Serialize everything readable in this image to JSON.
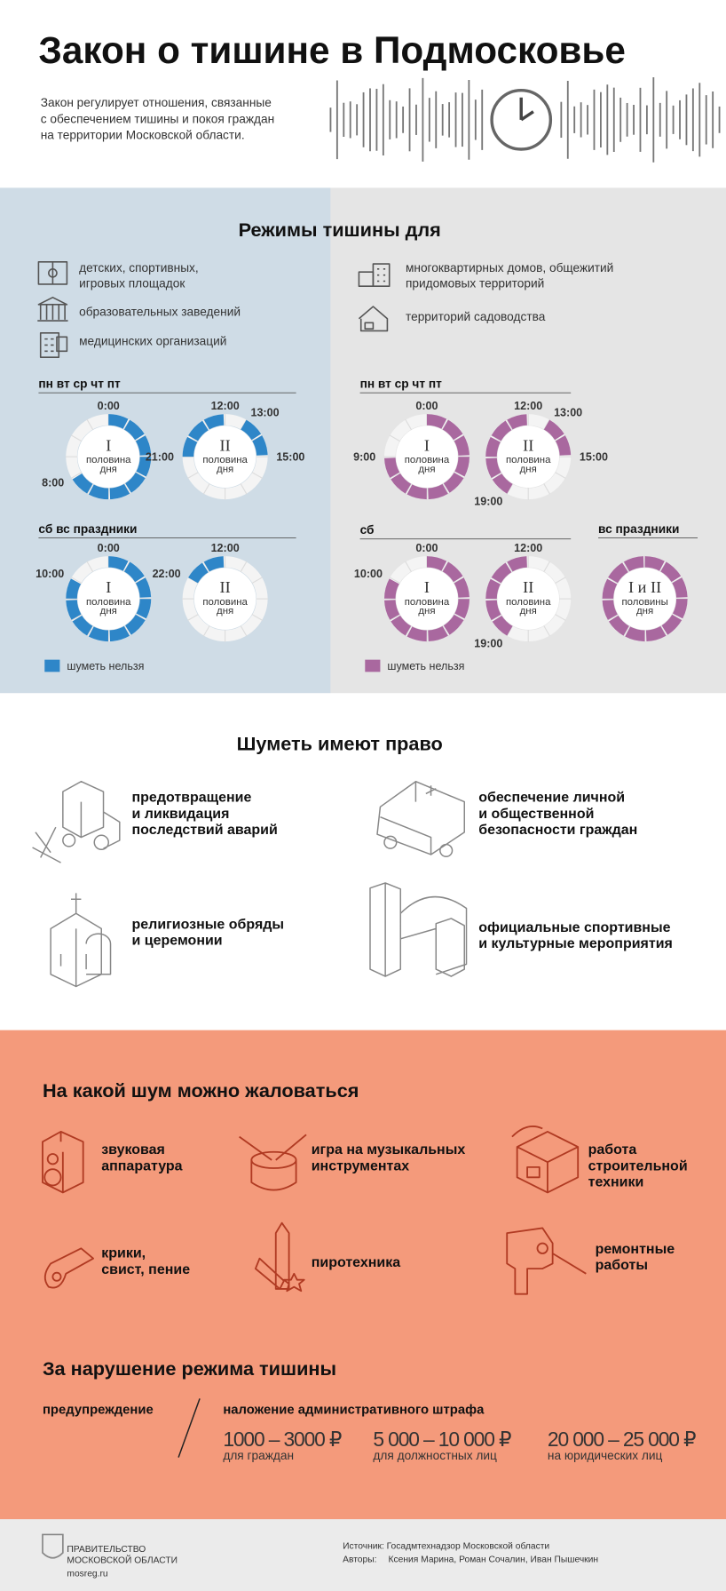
{
  "header": {
    "title": "Закон о тишине в Подмосковье",
    "description": [
      "Закон регулирует отношения, связанные",
      "с обеспечением тишины и покоя граждан",
      "на территории Московской области."
    ]
  },
  "regimes": {
    "title": "Режимы тишины для",
    "left": {
      "color": "#2e86c8",
      "legend": "шуметь нельзя",
      "places": [
        {
          "lines": [
            "детских, спортивных,",
            "игровых площадок"
          ]
        },
        {
          "lines": [
            "образовательных заведений"
          ]
        },
        {
          "lines": [
            "медицинских организаций"
          ]
        }
      ],
      "schedules": [
        {
          "days": "пн  вт  ср  чт  пт",
          "rings": [
            {
              "numeral": "I",
              "caption": [
                "половина",
                "дня"
              ],
              "labels": [
                "0:00",
                "8:00"
              ],
              "segments": [
                [
                  0,
                  8
                ]
              ]
            },
            {
              "numeral": "II",
              "caption": [
                "половина",
                "дня"
              ],
              "labels": [
                "12:00",
                "13:00",
                "15:00",
                "21:00"
              ],
              "segments": [
                [
                  13,
                  15
                ],
                [
                  21,
                  24
                ]
              ]
            }
          ]
        },
        {
          "days": "сб  вс  праздники",
          "rings": [
            {
              "numeral": "I",
              "caption": [
                "половина",
                "дня"
              ],
              "labels": [
                "0:00",
                "10:00"
              ],
              "segments": [
                [
                  0,
                  10
                ]
              ]
            },
            {
              "numeral": "II",
              "caption": [
                "половина",
                "дня"
              ],
              "labels": [
                "12:00",
                "22:00"
              ],
              "segments": [
                [
                  22,
                  24
                ]
              ]
            }
          ]
        }
      ]
    },
    "right": {
      "color": "#a9689f",
      "legend": "шуметь нельзя",
      "places": [
        {
          "lines": [
            "многоквартирных домов, общежитий",
            "придомовых территорий"
          ]
        },
        {
          "lines": [
            "территорий садоводства"
          ]
        }
      ],
      "schedules": [
        {
          "days": "пн  вт  ср  чт  пт",
          "rings": [
            {
              "numeral": "I",
              "caption": [
                "половина",
                "дня"
              ],
              "labels": [
                "0:00",
                "9:00"
              ],
              "segments": [
                [
                  0,
                  9
                ]
              ]
            },
            {
              "numeral": "II",
              "caption": [
                "половина",
                "дня"
              ],
              "labels": [
                "12:00",
                "13:00",
                "15:00",
                "19:00"
              ],
              "segments": [
                [
                  13,
                  15
                ],
                [
                  19,
                  24
                ]
              ]
            }
          ]
        },
        {
          "days": "сб",
          "rings": [
            {
              "numeral": "I",
              "caption": [
                "половина",
                "дня"
              ],
              "labels": [
                "0:00",
                "10:00"
              ],
              "segments": [
                [
                  0,
                  10
                ]
              ]
            },
            {
              "numeral": "II",
              "caption": [
                "половина",
                "дня"
              ],
              "labels": [
                "12:00",
                "19:00"
              ],
              "segments": [
                [
                  19,
                  24
                ]
              ]
            }
          ]
        },
        {
          "days": "вс  праздники",
          "rings": [
            {
              "numeral": "I и II",
              "caption": [
                "половины",
                "дня"
              ],
              "labels": [],
              "segments": [
                [
                  0,
                  24
                ]
              ]
            }
          ]
        }
      ]
    }
  },
  "allowed": {
    "title": "Шуметь имеют право",
    "items": [
      {
        "lines": [
          "предотвращение",
          "и ликвидация",
          "последствий аварий"
        ]
      },
      {
        "lines": [
          "обеспечение личной",
          "и общественной",
          "безопасности граждан"
        ]
      },
      {
        "lines": [
          "религиозные обряды",
          "и церемонии"
        ]
      },
      {
        "lines": [
          "официальные спортивные",
          "и культурные мероприятия"
        ]
      }
    ]
  },
  "complaints": {
    "title": "На какой шум можно жаловаться",
    "items": [
      {
        "lines": [
          "звуковая",
          "аппаратура"
        ]
      },
      {
        "lines": [
          "игра на музыкальных",
          "инструментах"
        ]
      },
      {
        "lines": [
          "работа",
          "строительной",
          "техники"
        ]
      },
      {
        "lines": [
          "крики,",
          "свист, пение"
        ]
      },
      {
        "lines": [
          "пиротехника"
        ]
      },
      {
        "lines": [
          "ремонтные",
          "работы"
        ]
      }
    ]
  },
  "penalties": {
    "title": "За нарушение режима тишины",
    "warning": "предупреждение",
    "fine_title": "наложение административного штрафа",
    "fines": [
      {
        "amount": "1000 – 3000 ₽",
        "who": "для граждан"
      },
      {
        "amount": "5 000 – 10 000 ₽",
        "who": "для должностных лиц"
      },
      {
        "amount": "20 000 – 25 000 ₽",
        "who": "на юридических лиц"
      }
    ]
  },
  "footer": {
    "org": [
      "ПРАВИТЕЛЬСТВО",
      "МОСКОВСКОЙ ОБЛАСТИ"
    ],
    "site": "mosreg.ru",
    "source": "Источник: Госадмтехнадзор Московской области",
    "authors_label": "Авторы:",
    "authors": "Ксения Марина, Роман Сочалин, Иван Пышечкин"
  }
}
